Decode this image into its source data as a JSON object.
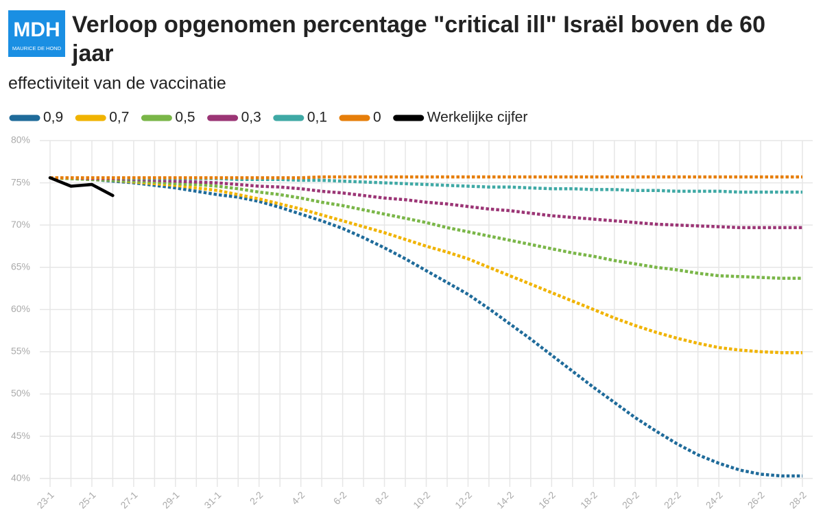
{
  "logo": {
    "text": "MDH",
    "subtext": "MAURICE DE HOND"
  },
  "chart_data": {
    "type": "line",
    "title": "Verloop opgenomen percentage \"critical ill\" Israël boven de 60 jaar",
    "title_lines": [
      "Verloop opgenomen percentage \"critical ill\" Israël boven de 60",
      "jaar"
    ],
    "subtitle": "effectiviteit van de vaccinatie",
    "categories": [
      "23-1",
      null,
      "25-1",
      null,
      "27-1",
      null,
      "29-1",
      null,
      "31-1",
      null,
      "2-2",
      null,
      "4-2",
      null,
      "6-2",
      null,
      "8-2",
      null,
      "10-2",
      null,
      "12-2",
      null,
      "14-2",
      null,
      "16-2",
      null,
      "18-2",
      null,
      "20-2",
      null,
      "22-2",
      null,
      "24-2",
      null,
      "26-2",
      null,
      "28-2"
    ],
    "ylim": [
      39,
      80
    ],
    "yticks": [
      {
        "value": 40,
        "label": "40%"
      },
      {
        "value": 45,
        "label": "45%"
      },
      {
        "value": 50,
        "label": "50%"
      },
      {
        "value": 55,
        "label": "55%"
      },
      {
        "value": 60,
        "label": "60%"
      },
      {
        "value": 65,
        "label": "65%"
      },
      {
        "value": 70,
        "label": "70%"
      },
      {
        "value": 75,
        "label": "75%"
      },
      {
        "value": 80,
        "label": "80%"
      }
    ],
    "grid": true,
    "series": [
      {
        "name": "0,9",
        "color": "#1f6b9a",
        "style": "dotted",
        "values": [
          75.6,
          75.5,
          75.4,
          75.2,
          75.0,
          74.7,
          74.4,
          74.0,
          73.6,
          73.3,
          72.8,
          72.1,
          71.3,
          70.5,
          69.6,
          68.5,
          67.3,
          66.0,
          64.6,
          63.2,
          61.8,
          60.1,
          58.3,
          56.5,
          54.6,
          52.7,
          50.8,
          49.0,
          47.2,
          45.6,
          44.1,
          42.8,
          41.8,
          41.0,
          40.5,
          40.3,
          40.3
        ]
      },
      {
        "name": "0,7",
        "color": "#f0b300",
        "style": "dotted",
        "values": [
          75.6,
          75.5,
          75.4,
          75.3,
          75.1,
          74.9,
          74.7,
          74.4,
          74.1,
          73.6,
          73.1,
          72.5,
          71.9,
          71.2,
          70.5,
          69.8,
          69.1,
          68.3,
          67.5,
          66.8,
          66.0,
          65.0,
          64.0,
          63.0,
          62.0,
          61.0,
          60.0,
          59.0,
          58.1,
          57.3,
          56.6,
          56.0,
          55.5,
          55.2,
          55.0,
          54.9,
          54.9
        ]
      },
      {
        "name": "0,5",
        "color": "#7ab648",
        "style": "dotted",
        "values": [
          75.6,
          75.5,
          75.4,
          75.3,
          75.2,
          75.1,
          74.9,
          74.8,
          74.6,
          74.3,
          73.9,
          73.6,
          73.2,
          72.7,
          72.3,
          71.8,
          71.3,
          70.8,
          70.3,
          69.7,
          69.2,
          68.7,
          68.2,
          67.7,
          67.2,
          66.7,
          66.3,
          65.8,
          65.4,
          65.0,
          64.7,
          64.3,
          64.0,
          63.9,
          63.8,
          63.7,
          63.7
        ]
      },
      {
        "name": "0,3",
        "color": "#9b3575",
        "style": "dotted",
        "values": [
          75.6,
          75.6,
          75.5,
          75.5,
          75.4,
          75.3,
          75.2,
          75.1,
          75.0,
          74.8,
          74.6,
          74.5,
          74.3,
          74.0,
          73.8,
          73.5,
          73.2,
          73.0,
          72.7,
          72.5,
          72.2,
          71.9,
          71.7,
          71.4,
          71.1,
          70.9,
          70.7,
          70.5,
          70.3,
          70.1,
          70.0,
          69.9,
          69.8,
          69.7,
          69.7,
          69.7,
          69.7
        ]
      },
      {
        "name": "0,1",
        "color": "#3fa9a5",
        "style": "dotted",
        "values": [
          75.6,
          75.6,
          75.6,
          75.6,
          75.5,
          75.5,
          75.5,
          75.5,
          75.5,
          75.4,
          75.4,
          75.4,
          75.3,
          75.3,
          75.2,
          75.1,
          75.0,
          74.9,
          74.8,
          74.7,
          74.6,
          74.5,
          74.5,
          74.4,
          74.3,
          74.3,
          74.2,
          74.2,
          74.1,
          74.1,
          74.0,
          74.0,
          74.0,
          73.9,
          73.9,
          73.9,
          73.9
        ]
      },
      {
        "name": "0",
        "color": "#e67e0a",
        "style": "dotted",
        "values": [
          75.6,
          75.6,
          75.6,
          75.6,
          75.6,
          75.6,
          75.6,
          75.6,
          75.6,
          75.6,
          75.6,
          75.6,
          75.6,
          75.7,
          75.7,
          75.7,
          75.7,
          75.7,
          75.7,
          75.7,
          75.7,
          75.7,
          75.7,
          75.7,
          75.7,
          75.7,
          75.7,
          75.7,
          75.7,
          75.7,
          75.7,
          75.7,
          75.7,
          75.7,
          75.7,
          75.7,
          75.7
        ]
      },
      {
        "name": "Werkelijke cijfer",
        "color": "#000000",
        "style": "solid",
        "values": [
          75.6,
          74.6,
          74.8,
          73.5,
          null,
          null,
          null,
          null,
          null,
          null,
          null,
          null,
          null,
          null,
          null,
          null,
          null,
          null,
          null,
          null,
          null,
          null,
          null,
          null,
          null,
          null,
          null,
          null,
          null,
          null,
          null,
          null,
          null,
          null,
          null,
          null,
          null
        ]
      }
    ]
  }
}
